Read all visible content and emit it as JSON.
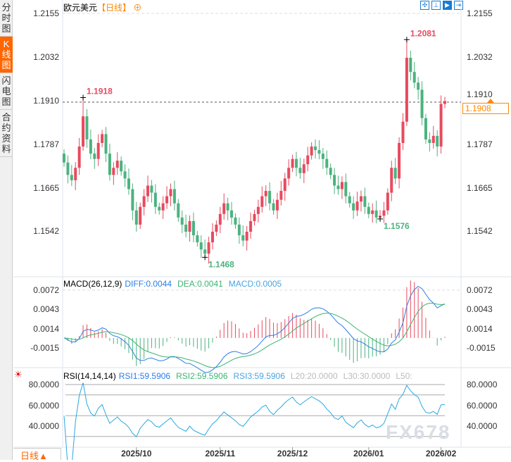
{
  "sidebar": {
    "tabs": [
      {
        "label": "分时图",
        "active": false
      },
      {
        "label": "K线图",
        "active": true
      },
      {
        "label": "闪电图",
        "active": false
      },
      {
        "label": "合约资料",
        "active": false
      }
    ]
  },
  "header": {
    "symbol": "欧元美元",
    "period": "【日线】",
    "add_icon": "circle-plus-icon",
    "tool_icons": [
      "move-icon",
      "zoom-range-icon",
      "play-icon",
      "exit-icon"
    ]
  },
  "price_axis": {
    "ticks": [
      "1.2155",
      "1.2032",
      "1.1910",
      "1.1787",
      "1.1665",
      "1.1542"
    ],
    "current": "1.1908",
    "ref_line": "1.1910"
  },
  "annotations": {
    "high1": "1.1918",
    "high2": "1.2081",
    "low1": "1.1468",
    "low2": "1.1576"
  },
  "macd": {
    "label": "MACD(26,12,9)",
    "diff": "DIFF:0.0044",
    "dea": "DEA:0.0041",
    "macd": "MACD:0.0005",
    "ticks": [
      "0.0072",
      "0.0043",
      "0.0014",
      "-0.0015"
    ]
  },
  "rsi": {
    "label": "RSI(14,14,14)",
    "rsi1": "RSI1:59.5906",
    "rsi2": "RSI2:59.5906",
    "rsi3": "RSI3:59.5906",
    "l20": "L20:20.0000",
    "l30": "L30:30.0000",
    "l50": "L50:",
    "ticks": [
      "80.0000",
      "60.0000",
      "40.0000"
    ]
  },
  "period_button": "日线▲",
  "watermark": "FX678",
  "colors": {
    "up": "#e84a5f",
    "down": "#4cb27f",
    "diff": "#2b7de9",
    "dea": "#3cb371",
    "rsi": "#29a8e0",
    "accent": "#ff6600"
  },
  "chart_data": {
    "type": "candlestick",
    "first_open": 1.176,
    "close": [
      1.1735,
      1.17,
      1.1685,
      1.172,
      1.178,
      1.1865,
      1.18,
      1.176,
      1.1745,
      1.179,
      1.1815,
      1.176,
      1.17,
      1.172,
      1.174,
      1.171,
      1.169,
      1.166,
      1.16,
      1.156,
      1.161,
      1.164,
      1.167,
      1.165,
      1.161,
      1.16,
      1.162,
      1.164,
      1.166,
      1.162,
      1.158,
      1.156,
      1.154,
      1.157,
      1.153,
      1.151,
      1.149,
      1.1478,
      1.151,
      1.154,
      1.156,
      1.159,
      1.162,
      1.16,
      1.158,
      1.156,
      1.153,
      1.1515,
      1.154,
      1.157,
      1.159,
      1.161,
      1.164,
      1.1655,
      1.162,
      1.16,
      1.163,
      1.1655,
      1.169,
      1.172,
      1.1745,
      1.172,
      1.1705,
      1.173,
      1.1755,
      1.178,
      1.177,
      1.176,
      1.1745,
      1.172,
      1.17,
      1.167,
      1.166,
      1.168,
      1.164,
      1.162,
      1.16,
      1.1625,
      1.164,
      1.161,
      1.159,
      1.16,
      1.158,
      1.1585,
      1.16,
      1.165,
      1.172,
      1.169,
      1.179,
      1.185,
      1.203,
      1.199,
      1.196,
      1.194,
      1.186,
      1.18,
      1.179,
      1.181,
      1.178,
      1.19,
      1.1908
    ],
    "extremes": [
      {
        "index": 5,
        "high": 1.1918
      },
      {
        "index": 37,
        "low": 1.1468
      },
      {
        "index": 83,
        "low": 1.1576
      },
      {
        "index": 90,
        "high": 1.2081
      }
    ],
    "x_labels": [
      {
        "label": "2025/10",
        "index": 19
      },
      {
        "label": "2025/11",
        "index": 41
      },
      {
        "label": "2025/12",
        "index": 60
      },
      {
        "label": "2026/01",
        "index": 80
      },
      {
        "label": "2026/02",
        "index": 99
      }
    ],
    "price_range": [
      1.142,
      1.2185
    ],
    "macd_range": [
      -0.0075,
      0.0085
    ],
    "rsi_range": [
      20,
      90
    ]
  }
}
